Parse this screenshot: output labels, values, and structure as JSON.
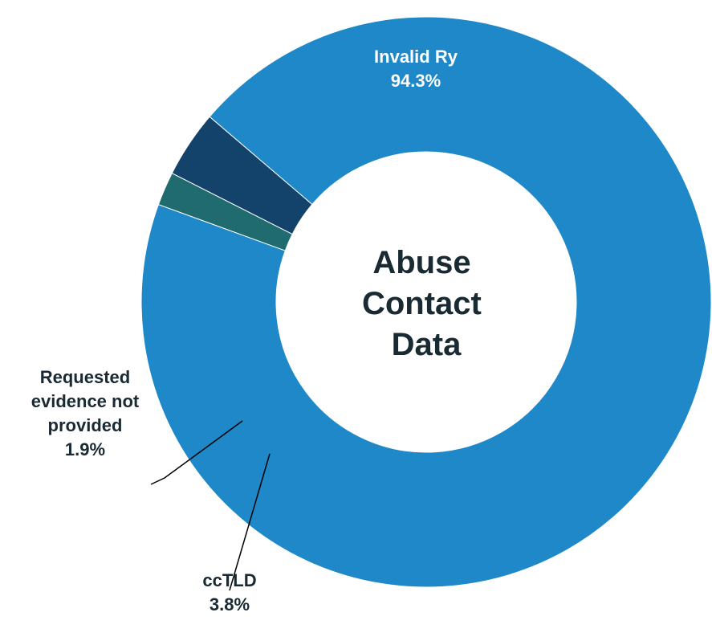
{
  "chart_data": {
    "type": "pie",
    "style": "donut",
    "title": "Abuse Contact Data",
    "center_label_lines": [
      "Abuse",
      "Contact",
      "Data"
    ],
    "slices": [
      {
        "name": "Invalid Ry",
        "value": 94.3,
        "value_label": "94.3%",
        "color": "#1e88c8",
        "label_lines": [
          "Invalid Ry"
        ],
        "label_color": "#ffffff"
      },
      {
        "name": "ccTLD",
        "value": 3.8,
        "value_label": "3.8%",
        "color": "#13426b",
        "label_lines": [
          "ccTLD"
        ],
        "label_color": "#1a2a33"
      },
      {
        "name": "Requested evidence not provided",
        "value": 1.9,
        "value_label": "1.9%",
        "color": "#1f6b70",
        "label_lines": [
          "Requested",
          "evidence not",
          "provided"
        ],
        "label_color": "#1a2a33"
      }
    ],
    "legend": "none"
  }
}
